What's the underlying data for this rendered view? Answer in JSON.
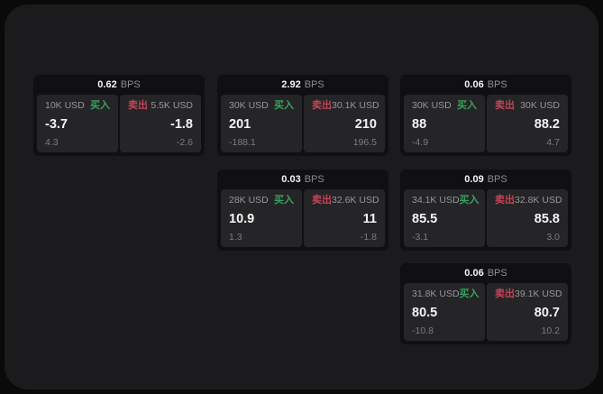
{
  "labels": {
    "bps_unit": "BPS",
    "buy": "买入",
    "sell": "卖出"
  },
  "colors": {
    "outer_bg": "#0a0a0a",
    "page_bg": "#1b1b1d",
    "card_bg": "#101012",
    "panel_bg": "#252527",
    "text_primary": "#f4f4f5",
    "text_muted": "#97979b",
    "text_dim": "#7d7d81",
    "buy_green": "#3aa05f",
    "sell_red": "#c24458"
  },
  "cards": [
    {
      "row": 1,
      "col": 1,
      "bps": "0.62",
      "buy": {
        "amount": "10K USD",
        "price": "-3.7",
        "delta": "4.3"
      },
      "sell": {
        "amount": "5.5K USD",
        "price": "-1.8",
        "delta": "-2.6"
      }
    },
    {
      "row": 1,
      "col": 2,
      "bps": "2.92",
      "buy": {
        "amount": "30K USD",
        "price": "201",
        "delta": "-188.1"
      },
      "sell": {
        "amount": "30.1K USD",
        "price": "210",
        "delta": "196.5"
      }
    },
    {
      "row": 1,
      "col": 3,
      "bps": "0.06",
      "buy": {
        "amount": "30K USD",
        "price": "88",
        "delta": "-4.9"
      },
      "sell": {
        "amount": "30K USD",
        "price": "88.2",
        "delta": "4.7"
      }
    },
    {
      "row": 2,
      "col": 2,
      "bps": "0.03",
      "buy": {
        "amount": "28K USD",
        "price": "10.9",
        "delta": "1.3"
      },
      "sell": {
        "amount": "32.6K USD",
        "price": "11",
        "delta": "-1.8"
      }
    },
    {
      "row": 2,
      "col": 3,
      "bps": "0.09",
      "buy": {
        "amount": "34.1K USD",
        "price": "85.5",
        "delta": "-3.1"
      },
      "sell": {
        "amount": "32.8K USD",
        "price": "85.8",
        "delta": "3.0"
      }
    },
    {
      "row": 3,
      "col": 3,
      "bps": "0.06",
      "buy": {
        "amount": "31.8K USD",
        "price": "80.5",
        "delta": "-10.8"
      },
      "sell": {
        "amount": "39.1K USD",
        "price": "80.7",
        "delta": "10.2"
      }
    }
  ]
}
